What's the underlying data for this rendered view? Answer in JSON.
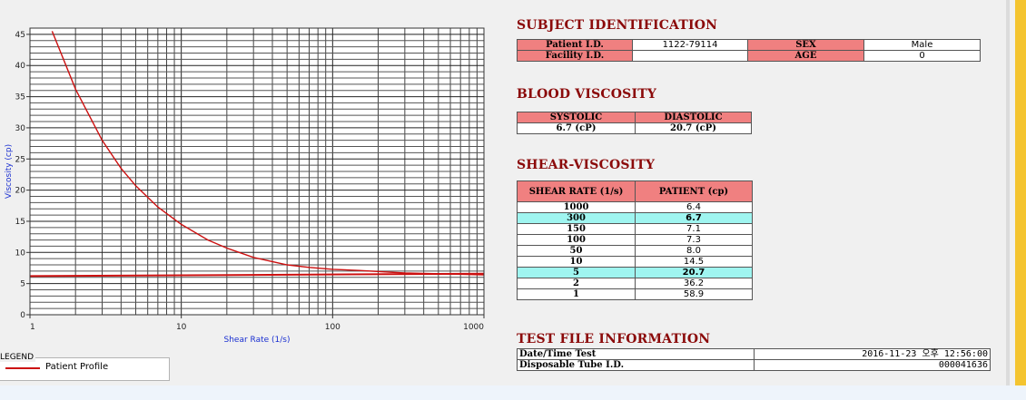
{
  "chart_data": {
    "type": "line",
    "xlabel": "Shear Rate (1/s)",
    "ylabel": "Viscosity (cp)",
    "x_scale": "log",
    "xlim": [
      1,
      1000
    ],
    "ylim": [
      0,
      46
    ],
    "x_ticks": [
      "1",
      "10",
      "100",
      "1000"
    ],
    "y_ticks": [
      "0",
      "5",
      "10",
      "15",
      "20",
      "25",
      "30",
      "35",
      "40",
      "45"
    ],
    "grid": true,
    "series": [
      {
        "name": "Patient Profile",
        "color": "#cc1010",
        "x": [
          1.4,
          2,
          3,
          4,
          5,
          7,
          10,
          15,
          20,
          30,
          50,
          70,
          100,
          150,
          300,
          1000
        ],
        "y": [
          45.5,
          36.2,
          28.0,
          23.5,
          20.7,
          17.3,
          14.5,
          12.0,
          10.7,
          9.2,
          8.0,
          7.6,
          7.3,
          7.1,
          6.7,
          6.4
        ]
      },
      {
        "color": "#cc1010",
        "x": [
          1,
          1000
        ],
        "y": [
          6.2,
          6.6
        ]
      }
    ]
  },
  "legend": {
    "title": "LEGEND",
    "items": [
      "Patient Profile"
    ]
  },
  "subject": {
    "heading": "SUBJECT IDENTIFICATION",
    "patient_id_label": "Patient I.D.",
    "patient_id_value": "1122-79114",
    "sex_label": "SEX",
    "sex_value": "Male",
    "facility_label": "Facility I.D.",
    "facility_value": "",
    "age_label": "AGE",
    "age_value": "0"
  },
  "blood": {
    "heading": "BLOOD VISCOSITY",
    "systolic_label": "SYSTOLIC",
    "diastolic_label": "DIASTOLIC",
    "systolic_value": "6.7 (cP)",
    "diastolic_value": "20.7 (cP)"
  },
  "shear": {
    "heading": "SHEAR-VISCOSITY",
    "col_rate": "SHEAR RATE (1/s)",
    "col_patient": "PATIENT (cp)",
    "rows": [
      {
        "rate": "1000",
        "value": "6.4"
      },
      {
        "rate": "300",
        "value": "6.7"
      },
      {
        "rate": "150",
        "value": "7.1"
      },
      {
        "rate": "100",
        "value": "7.3"
      },
      {
        "rate": "50",
        "value": "8.0"
      },
      {
        "rate": "10",
        "value": "14.5"
      },
      {
        "rate": "5",
        "value": "20.7"
      },
      {
        "rate": "2",
        "value": "36.2"
      },
      {
        "rate": "1",
        "value": "58.9"
      }
    ],
    "highlight_color": "#9ff5f0"
  },
  "testfile": {
    "heading": "TEST FILE INFORMATION",
    "date_label": "Date/Time Test",
    "date_value": "2016-11-23  오후 12:56:00",
    "tube_label": "Disposable Tube I.D.",
    "tube_value": "000041636"
  }
}
